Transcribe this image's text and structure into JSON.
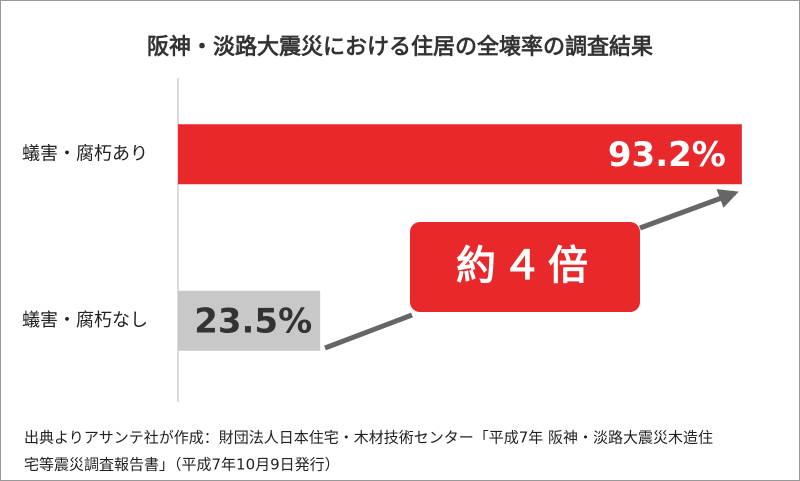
{
  "chart_data": {
    "type": "bar",
    "orientation": "horizontal",
    "title": "阪神・淡路大震災における住居の全壊率の調査結果",
    "categories": [
      "蟻害・腐朽あり",
      "蟻害・腐朽なし"
    ],
    "values": [
      93.2,
      23.5
    ],
    "value_labels": [
      "93.2%",
      "23.5%"
    ],
    "colors": [
      "#e8282b",
      "#c8c8c8"
    ],
    "value_label_colors": [
      "#ffffff",
      "#333333"
    ],
    "xlim": [
      0,
      100
    ],
    "annotation": "約４倍",
    "source": [
      "出典よりアサンテ社が作成：財団法人日本住宅・木材技術センター「平成7年 阪神・淡路大震災木造住",
      "宅等震災調査報告書」（平成7年10月9日発行）"
    ]
  }
}
